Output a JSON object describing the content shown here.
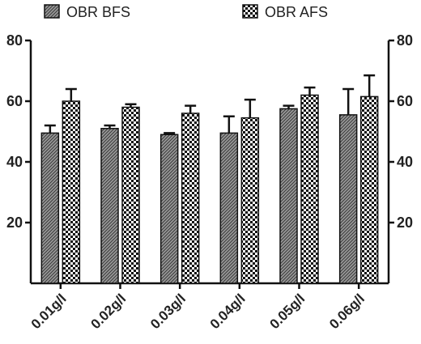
{
  "chart_data": {
    "type": "bar",
    "categories": [
      "0.01g/l",
      "0.02g/l",
      "0.03g/l",
      "0.04g/l",
      "0.05g/l",
      "0.06g/l"
    ],
    "series": [
      {
        "name": "OBR BFS",
        "values": [
          49.5,
          51,
          49,
          49.5,
          57.5,
          55.5
        ],
        "errors": [
          2.5,
          1,
          0.5,
          5.5,
          1,
          8.5
        ],
        "pattern": "fine-hatch"
      },
      {
        "name": "OBR AFS",
        "values": [
          60,
          58,
          56,
          54.5,
          62,
          61.5
        ],
        "errors": [
          4,
          1,
          2.5,
          6,
          2.5,
          7
        ],
        "pattern": "checker"
      }
    ],
    "ylim": [
      0,
      80
    ],
    "yticks": [
      20,
      40,
      60,
      80
    ],
    "y_axes": [
      "left",
      "right"
    ],
    "error_bars": "upper",
    "legend_position": "top",
    "colors": {
      "axis": "#111111",
      "bar_stroke": "#111111"
    }
  }
}
